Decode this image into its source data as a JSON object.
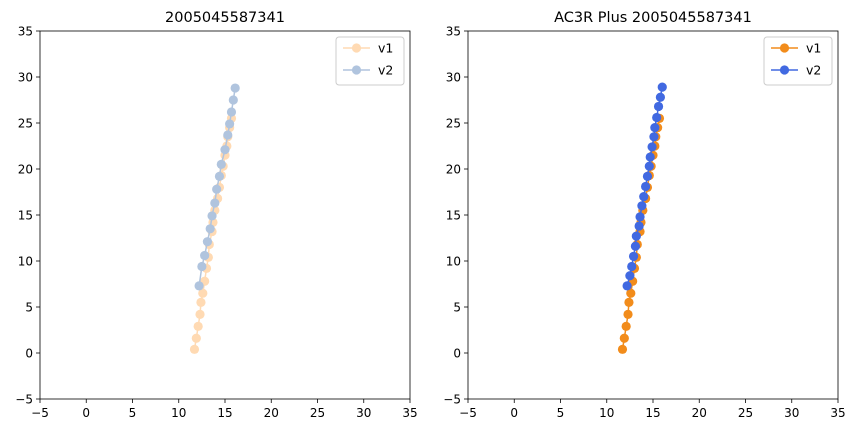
{
  "chart_data": [
    {
      "type": "line",
      "title": "2005045587341",
      "xlim": [
        -5,
        35
      ],
      "ylim": [
        -5,
        35
      ],
      "xticks": [
        -5,
        0,
        5,
        10,
        15,
        20,
        25,
        30,
        35
      ],
      "yticks": [
        -5,
        0,
        5,
        10,
        15,
        20,
        25,
        30,
        35
      ],
      "legend_position": "top-right",
      "grid": false,
      "series": [
        {
          "name": "v1",
          "color": "#ffdab3",
          "marker": "circle",
          "points": [
            [
              11.7,
              0.4
            ],
            [
              11.9,
              1.6
            ],
            [
              12.1,
              2.9
            ],
            [
              12.3,
              4.2
            ],
            [
              12.4,
              5.5
            ],
            [
              12.6,
              6.5
            ],
            [
              12.8,
              7.8
            ],
            [
              13.0,
              9.2
            ],
            [
              13.2,
              10.4
            ],
            [
              13.3,
              11.8
            ],
            [
              13.6,
              13.2
            ],
            [
              13.7,
              14.2
            ],
            [
              13.9,
              15.5
            ],
            [
              14.2,
              16.8
            ],
            [
              14.4,
              18.0
            ],
            [
              14.6,
              19.3
            ],
            [
              14.8,
              20.3
            ],
            [
              15.0,
              21.5
            ],
            [
              15.2,
              22.5
            ],
            [
              15.3,
              23.5
            ],
            [
              15.5,
              24.5
            ],
            [
              15.7,
              25.5
            ]
          ]
        },
        {
          "name": "v2",
          "color": "#b0c4de",
          "marker": "circle",
          "points": [
            [
              12.2,
              7.3
            ],
            [
              12.5,
              9.4
            ],
            [
              12.8,
              10.6
            ],
            [
              13.1,
              12.1
            ],
            [
              13.4,
              13.5
            ],
            [
              13.6,
              14.9
            ],
            [
              13.9,
              16.3
            ],
            [
              14.1,
              17.8
            ],
            [
              14.4,
              19.2
            ],
            [
              14.6,
              20.5
            ],
            [
              15.0,
              22.1
            ],
            [
              15.3,
              23.7
            ],
            [
              15.5,
              24.9
            ],
            [
              15.7,
              26.2
            ],
            [
              15.9,
              27.5
            ],
            [
              16.1,
              28.8
            ]
          ]
        }
      ]
    },
    {
      "type": "line",
      "title": "AC3R Plus 2005045587341",
      "xlim": [
        -5,
        35
      ],
      "ylim": [
        -5,
        35
      ],
      "xticks": [
        -5,
        0,
        5,
        10,
        15,
        20,
        25,
        30,
        35
      ],
      "yticks": [
        -5,
        0,
        5,
        10,
        15,
        20,
        25,
        30,
        35
      ],
      "legend_position": "top-right",
      "grid": false,
      "series": [
        {
          "name": "v1",
          "color": "#f28c1b",
          "marker": "circle",
          "points": [
            [
              11.7,
              0.4
            ],
            [
              11.9,
              1.6
            ],
            [
              12.1,
              2.9
            ],
            [
              12.3,
              4.2
            ],
            [
              12.4,
              5.5
            ],
            [
              12.6,
              6.5
            ],
            [
              12.8,
              7.8
            ],
            [
              13.0,
              9.2
            ],
            [
              13.2,
              10.4
            ],
            [
              13.3,
              11.8
            ],
            [
              13.6,
              13.2
            ],
            [
              13.7,
              14.2
            ],
            [
              13.9,
              15.5
            ],
            [
              14.2,
              16.8
            ],
            [
              14.4,
              18.0
            ],
            [
              14.6,
              19.3
            ],
            [
              14.8,
              20.3
            ],
            [
              15.0,
              21.5
            ],
            [
              15.2,
              22.5
            ],
            [
              15.3,
              23.5
            ],
            [
              15.5,
              24.5
            ],
            [
              15.7,
              25.5
            ]
          ]
        },
        {
          "name": "v2",
          "color": "#4169e1",
          "marker": "circle",
          "points": [
            [
              12.2,
              7.3
            ],
            [
              12.5,
              8.4
            ],
            [
              12.7,
              9.4
            ],
            [
              12.9,
              10.5
            ],
            [
              13.1,
              11.6
            ],
            [
              13.2,
              12.7
            ],
            [
              13.5,
              13.8
            ],
            [
              13.6,
              14.8
            ],
            [
              13.8,
              16.0
            ],
            [
              14.0,
              17.0
            ],
            [
              14.2,
              18.1
            ],
            [
              14.4,
              19.2
            ],
            [
              14.6,
              20.3
            ],
            [
              14.7,
              21.3
            ],
            [
              14.9,
              22.4
            ],
            [
              15.1,
              23.5
            ],
            [
              15.2,
              24.5
            ],
            [
              15.4,
              25.6
            ],
            [
              15.6,
              26.8
            ],
            [
              15.8,
              27.8
            ],
            [
              16.0,
              28.9
            ]
          ]
        }
      ]
    }
  ]
}
